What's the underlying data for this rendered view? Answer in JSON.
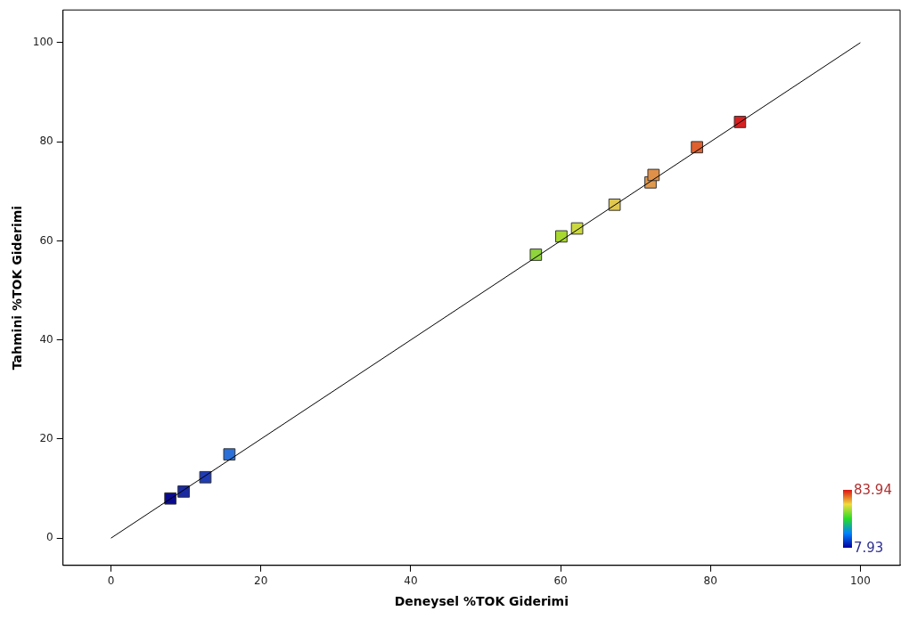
{
  "chart_data": {
    "type": "scatter",
    "xlabel": "Deneysel %TOK Giderimi",
    "ylabel": "Tahmini %TOK Giderimi",
    "series": [
      {
        "type": "scatter",
        "x": [
          7.93,
          9.7,
          12.6,
          15.8,
          56.7,
          60.1,
          62.2,
          67.2,
          72.0,
          72.4,
          78.2,
          83.94
        ],
        "values": [
          8.0,
          9.4,
          12.3,
          16.9,
          57.2,
          60.9,
          62.5,
          67.3,
          71.8,
          73.3,
          78.9,
          84.0
        ],
        "colors": [
          "#0a0a8c",
          "#1a2aa0",
          "#1f3cb4",
          "#2a70d8",
          "#8fd43c",
          "#a8d830",
          "#cbd840",
          "#e0c850",
          "#e09a50",
          "#e09048",
          "#e06030",
          "#d82020"
        ],
        "marker": "square"
      },
      {
        "type": "line",
        "x": [
          0,
          100
        ],
        "values": [
          0,
          100
        ],
        "color": "#000000",
        "marker": "none",
        "line_style": "solid"
      }
    ],
    "xlim": [
      -6.4,
      105.3
    ],
    "ylim": [
      -5.5,
      106.6
    ],
    "xticks": [
      0,
      20,
      40,
      60,
      80,
      100
    ],
    "yticks": [
      0,
      20,
      40,
      60,
      80,
      100
    ],
    "annotations": [
      "83.94",
      "7.93"
    ],
    "grid": false,
    "legend": false
  }
}
